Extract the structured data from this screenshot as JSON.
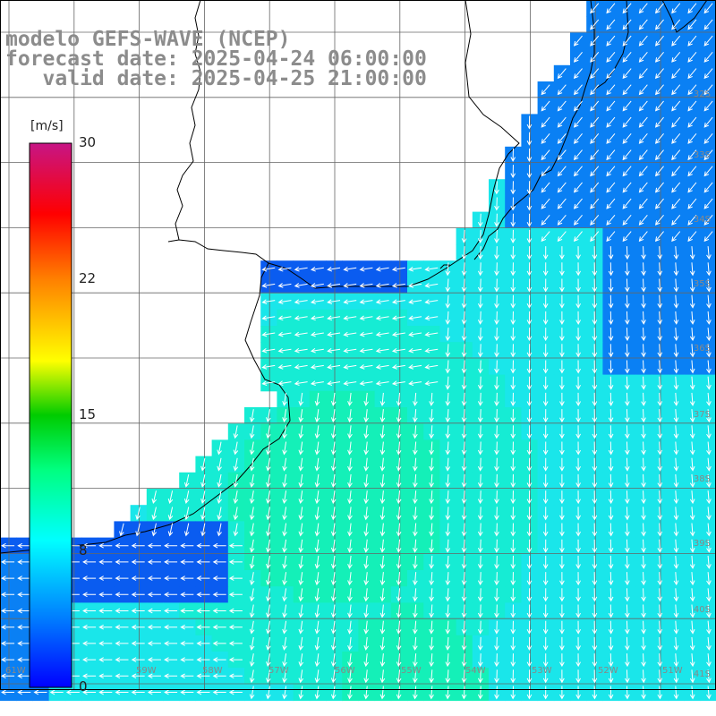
{
  "title": {
    "line1": "modelo GEFS-WAVE (NCEP)",
    "line2": "forecast date: 2025-04-24 06:00:00",
    "line3": "   valid date: 2025-04-25 21:00:00"
  },
  "colorbar": {
    "unit": "[m/s]",
    "ticks": [
      "30",
      "22",
      "15",
      "8",
      "0"
    ],
    "colors": [
      "#0000ff",
      "#00e8ff",
      "#00ff80",
      "#00dd00",
      "#ffff00",
      "#ff8000",
      "#ff0000",
      "#c71585"
    ]
  },
  "lat_labels": [
    "32S",
    "33S",
    "34S",
    "35S",
    "36S",
    "37S",
    "38S",
    "39S",
    "40S",
    "41S"
  ],
  "lon_labels": [
    "61W",
    "60W",
    "59W",
    "58W",
    "57W",
    "56W",
    "55W",
    "54W",
    "53W",
    "52W",
    "51W"
  ],
  "legend_colors": {
    "land": "#ffffff",
    "grid": "#666666",
    "coast": "#000000",
    "arrow": "#ffffff"
  }
}
